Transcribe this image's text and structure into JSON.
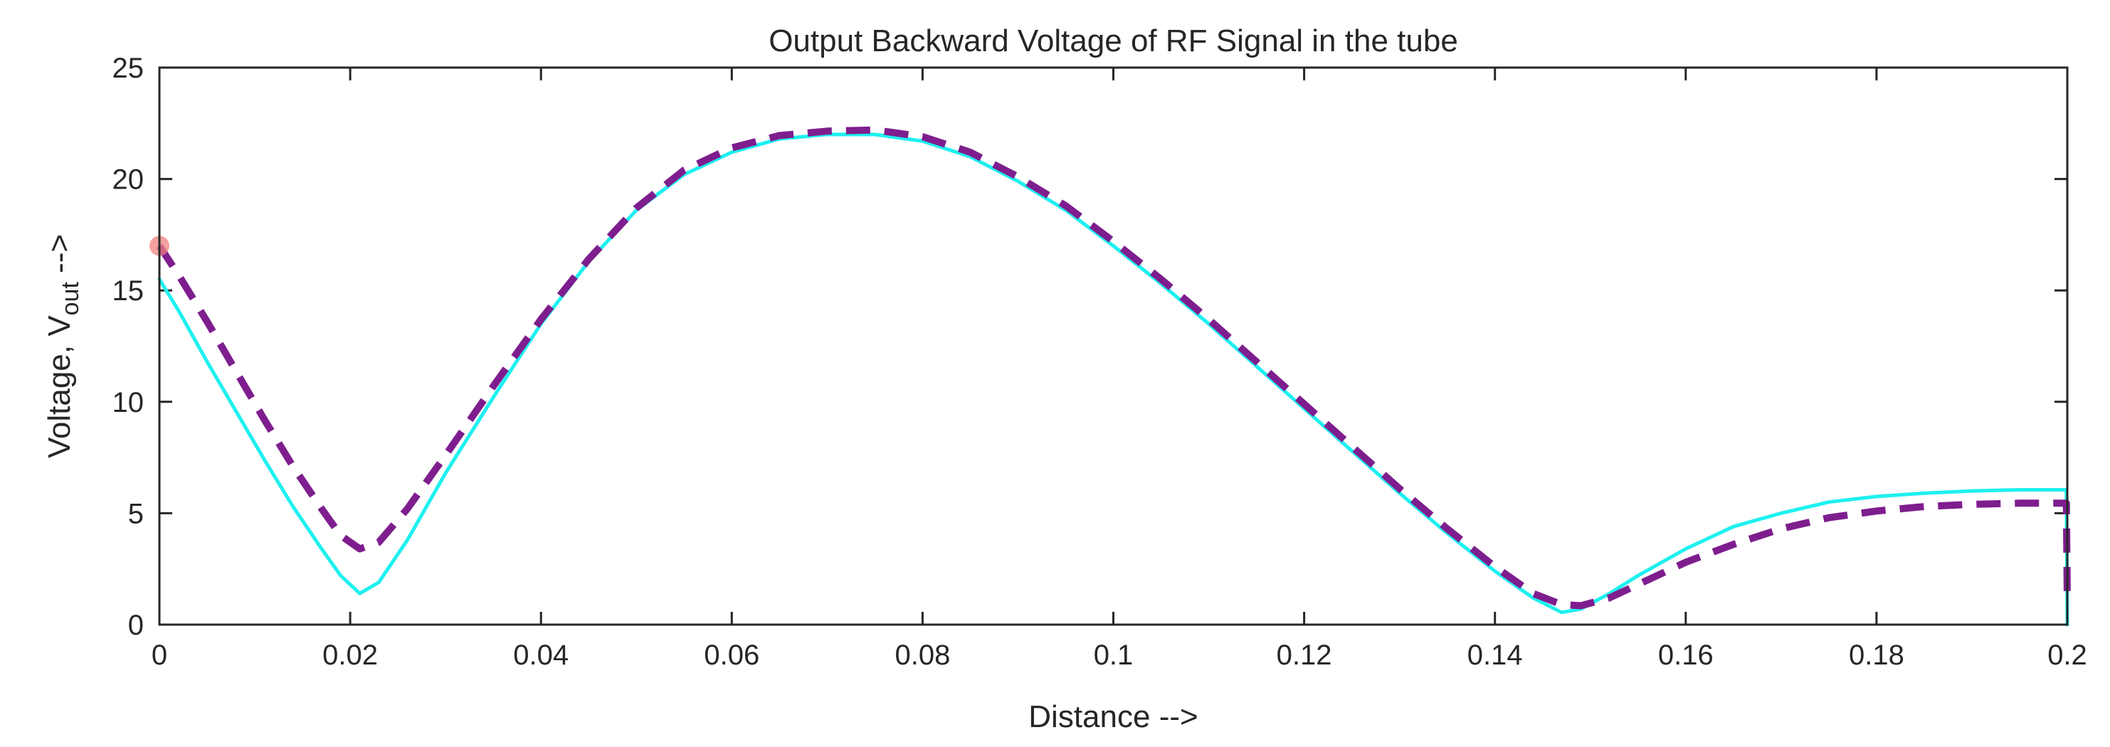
{
  "chart_data": {
    "type": "line",
    "title": "Output Backward Voltage of RF Signal in the tube",
    "xlabel": "Distance -->",
    "ylabel": {
      "main": "Voltage, V",
      "subscript": "out",
      "suffix": " -->"
    },
    "xlim": [
      0,
      0.2
    ],
    "ylim": [
      0,
      25
    ],
    "xticks": [
      0,
      0.02,
      0.04,
      0.06,
      0.08,
      0.1,
      0.12,
      0.14,
      0.16,
      0.18,
      0.2
    ],
    "xtick_labels": [
      "0",
      "0.02",
      "0.04",
      "0.06",
      "0.08",
      "0.1",
      "0.12",
      "0.14",
      "0.16",
      "0.18",
      "0.2"
    ],
    "yticks": [
      0,
      5,
      10,
      15,
      20,
      25
    ],
    "ytick_labels": [
      "0",
      "5",
      "10",
      "15",
      "20",
      "25"
    ],
    "grid": false,
    "series": [
      {
        "style": "solid",
        "color": "#1EF0F0",
        "points": [
          [
            0,
            15.5
          ],
          [
            0.002,
            14.1
          ],
          [
            0.005,
            11.8
          ],
          [
            0.008,
            9.6
          ],
          [
            0.011,
            7.4
          ],
          [
            0.014,
            5.3
          ],
          [
            0.017,
            3.4
          ],
          [
            0.019,
            2.2
          ],
          [
            0.021,
            1.4
          ],
          [
            0.023,
            1.9
          ],
          [
            0.026,
            3.8
          ],
          [
            0.03,
            6.8
          ],
          [
            0.035,
            10.2
          ],
          [
            0.04,
            13.5
          ],
          [
            0.045,
            16.3
          ],
          [
            0.05,
            18.6
          ],
          [
            0.055,
            20.2
          ],
          [
            0.06,
            21.2
          ],
          [
            0.065,
            21.8
          ],
          [
            0.07,
            22.0
          ],
          [
            0.075,
            22.0
          ],
          [
            0.08,
            21.7
          ],
          [
            0.085,
            21.0
          ],
          [
            0.09,
            19.9
          ],
          [
            0.095,
            18.6
          ],
          [
            0.1,
            17.0
          ],
          [
            0.105,
            15.3
          ],
          [
            0.11,
            13.5
          ],
          [
            0.115,
            11.6
          ],
          [
            0.12,
            9.7
          ],
          [
            0.125,
            7.8
          ],
          [
            0.13,
            5.9
          ],
          [
            0.135,
            4.1
          ],
          [
            0.14,
            2.4
          ],
          [
            0.144,
            1.2
          ],
          [
            0.147,
            0.55
          ],
          [
            0.149,
            0.7
          ],
          [
            0.152,
            1.4
          ],
          [
            0.155,
            2.2
          ],
          [
            0.16,
            3.4
          ],
          [
            0.165,
            4.4
          ],
          [
            0.17,
            5.0
          ],
          [
            0.175,
            5.5
          ],
          [
            0.18,
            5.75
          ],
          [
            0.185,
            5.9
          ],
          [
            0.19,
            6.0
          ],
          [
            0.195,
            6.05
          ],
          [
            0.1999,
            6.05
          ],
          [
            0.2,
            0.0
          ]
        ]
      },
      {
        "style": "dashed",
        "color": "#7E1E8E",
        "points": [
          [
            0,
            17.0
          ],
          [
            0.002,
            15.7
          ],
          [
            0.005,
            13.6
          ],
          [
            0.008,
            11.4
          ],
          [
            0.011,
            9.2
          ],
          [
            0.014,
            7.1
          ],
          [
            0.017,
            5.2
          ],
          [
            0.019,
            4.0
          ],
          [
            0.021,
            3.4
          ],
          [
            0.023,
            3.7
          ],
          [
            0.026,
            5.2
          ],
          [
            0.03,
            7.6
          ],
          [
            0.035,
            10.7
          ],
          [
            0.04,
            13.7
          ],
          [
            0.045,
            16.4
          ],
          [
            0.05,
            18.7
          ],
          [
            0.055,
            20.4
          ],
          [
            0.06,
            21.4
          ],
          [
            0.065,
            21.95
          ],
          [
            0.07,
            22.15
          ],
          [
            0.075,
            22.2
          ],
          [
            0.08,
            21.9
          ],
          [
            0.085,
            21.2
          ],
          [
            0.09,
            20.1
          ],
          [
            0.095,
            18.8
          ],
          [
            0.1,
            17.2
          ],
          [
            0.105,
            15.5
          ],
          [
            0.11,
            13.7
          ],
          [
            0.115,
            11.8
          ],
          [
            0.12,
            9.9
          ],
          [
            0.125,
            8.0
          ],
          [
            0.13,
            6.1
          ],
          [
            0.135,
            4.3
          ],
          [
            0.14,
            2.6
          ],
          [
            0.144,
            1.4
          ],
          [
            0.147,
            0.9
          ],
          [
            0.149,
            0.85
          ],
          [
            0.152,
            1.2
          ],
          [
            0.155,
            1.8
          ],
          [
            0.16,
            2.8
          ],
          [
            0.165,
            3.6
          ],
          [
            0.17,
            4.3
          ],
          [
            0.175,
            4.8
          ],
          [
            0.18,
            5.1
          ],
          [
            0.185,
            5.3
          ],
          [
            0.19,
            5.4
          ],
          [
            0.195,
            5.45
          ],
          [
            0.1999,
            5.45
          ],
          [
            0.2,
            1.0
          ]
        ]
      }
    ],
    "marker": {
      "x": 0,
      "y": 17.0,
      "color": "#F08080"
    }
  }
}
